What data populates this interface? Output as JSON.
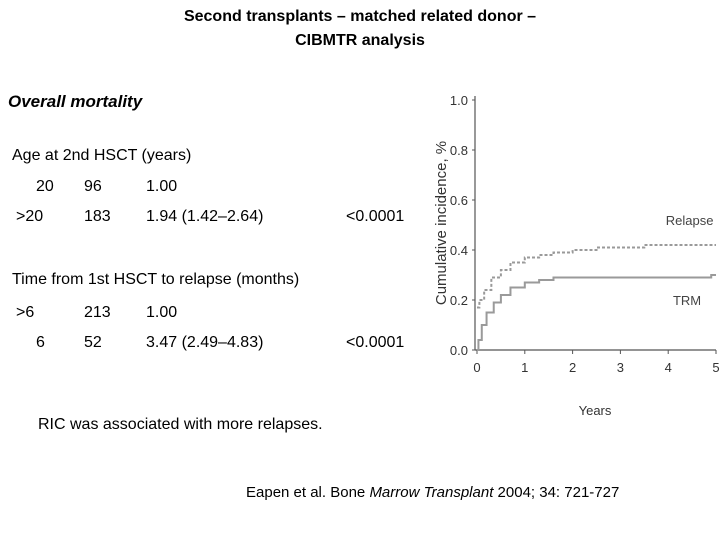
{
  "title_line1": "Second transplants – matched related donor –",
  "title_line2": "CIBMTR analysis",
  "section_title": "Overall mortality",
  "table": {
    "group1": {
      "label": "Age at 2nd HSCT (years)",
      "rows": [
        {
          "category": "20",
          "n": "96",
          "rr": "1.00",
          "p": ""
        },
        {
          "category": ">20",
          "n": "183",
          "rr": "1.94 (1.42–2.64)",
          "p": "<0.0001"
        }
      ]
    },
    "group2": {
      "label": "Time from 1st HSCT to relapse (months)",
      "rows": [
        {
          "category": ">6",
          "n": "213",
          "rr": "1.00",
          "p": ""
        },
        {
          "category": "6",
          "n": "52",
          "rr": "3.47 (2.49–4.83)",
          "p": "<0.0001"
        }
      ]
    }
  },
  "note": "RIC was associated with more relapses.",
  "citation": {
    "authors": "Eapen et al. Bone ",
    "journal": "Marrow Transplant",
    "details": " 2004; 34: 721-727"
  },
  "chart_data": {
    "type": "line",
    "xlabel": "Years",
    "ylabel": "Cumulative incidence, %",
    "xlim": [
      0,
      5
    ],
    "ylim": [
      0,
      1
    ],
    "x_ticks": [
      "0",
      "1",
      "2",
      "3",
      "4",
      "5"
    ],
    "y_ticks": [
      "0.0",
      "0.2",
      "0.4",
      "0.6",
      "0.8",
      "1.0"
    ],
    "grid": false,
    "series": [
      {
        "name": "Relapse",
        "color": "#9a9a9a",
        "dashed": true,
        "x": [
          0,
          0.05,
          0.15,
          0.3,
          0.5,
          0.7,
          1.0,
          1.3,
          1.6,
          2.0,
          2.5,
          3.0,
          3.5,
          4.0,
          4.5,
          5.0
        ],
        "y": [
          0.17,
          0.2,
          0.24,
          0.29,
          0.32,
          0.35,
          0.37,
          0.38,
          0.39,
          0.4,
          0.41,
          0.41,
          0.42,
          0.42,
          0.42,
          0.42
        ]
      },
      {
        "name": "TRM",
        "color": "#9a9a9a",
        "dashed": false,
        "x": [
          0,
          0.03,
          0.1,
          0.2,
          0.35,
          0.5,
          0.7,
          1.0,
          1.3,
          1.6,
          2.0,
          2.5,
          3.0,
          3.5,
          4.0,
          4.5,
          4.9,
          5.0
        ],
        "y": [
          0.0,
          0.04,
          0.1,
          0.15,
          0.19,
          0.22,
          0.25,
          0.27,
          0.28,
          0.29,
          0.29,
          0.29,
          0.29,
          0.29,
          0.29,
          0.29,
          0.3,
          0.3
        ]
      }
    ]
  }
}
